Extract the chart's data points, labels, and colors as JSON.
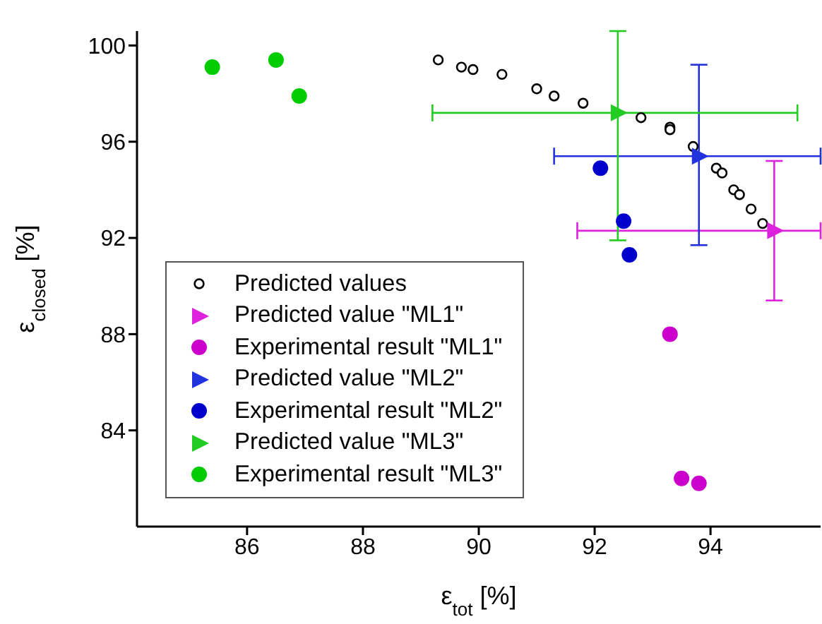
{
  "chart_data": {
    "type": "scatter",
    "xlabel": "ε$_{tot}$ [%]",
    "ylabel": "ε$_{closed}$ [%]",
    "xlim": [
      84.1,
      95.9
    ],
    "ylim": [
      80,
      100.6
    ],
    "xticks": [
      86,
      88,
      90,
      92,
      94
    ],
    "yticks": [
      84,
      88,
      92,
      96,
      100
    ],
    "grid": false,
    "legend": "bottom left",
    "series": [
      {
        "name": "Predicted values",
        "color": "#000000",
        "marker": "circle",
        "x": [
          89.3,
          89.7,
          89.9,
          90.4,
          91.0,
          91.3,
          91.8,
          92.8,
          93.3,
          93.3,
          93.7,
          94.1,
          94.2,
          94.4,
          94.5,
          94.7,
          94.9
        ],
        "values": [
          99.4,
          99.1,
          99.0,
          98.8,
          98.2,
          97.9,
          97.6,
          97.0,
          96.6,
          96.5,
          95.8,
          94.9,
          94.7,
          94.0,
          93.8,
          93.2,
          92.6
        ]
      },
      {
        "name": "Predicted value \"ML1\"",
        "color": "#dd22dd",
        "marker": "triangle",
        "x": [
          95.1
        ],
        "values": [
          92.3
        ],
        "errors": [
          [
            89.4,
            95.2
          ]
        ],
        "xerrors": [
          [
            91.7,
            95.9
          ]
        ]
      },
      {
        "name": "Experimental result \"ML1\"",
        "color": "#cc00cc",
        "marker": "circle",
        "x": [
          93.3,
          93.5,
          93.8
        ],
        "values": [
          88.0,
          82.0,
          81.8
        ]
      },
      {
        "name": "Predicted value \"ML2\"",
        "color": "#2233dd",
        "marker": "triangle",
        "x": [
          93.8
        ],
        "values": [
          95.4
        ],
        "errors": [
          [
            91.7,
            99.2
          ]
        ],
        "xerrors": [
          [
            91.3,
            95.9
          ]
        ]
      },
      {
        "name": "Experimental result \"ML2\"",
        "color": "#0000cc",
        "marker": "circle",
        "x": [
          92.1,
          92.5,
          92.6
        ],
        "values": [
          94.9,
          92.7,
          91.3
        ]
      },
      {
        "name": "Predicted value \"ML3\"",
        "color": "#22cc22",
        "marker": "triangle",
        "x": [
          92.4
        ],
        "values": [
          97.2
        ],
        "errors": [
          [
            91.9,
            100.6
          ]
        ],
        "xerrors": [
          [
            89.2,
            95.5
          ]
        ]
      },
      {
        "name": "Experimental result \"ML3\"",
        "color": "#00cc00",
        "marker": "circle",
        "x": [
          85.4,
          86.5,
          86.9
        ],
        "values": [
          99.1,
          99.4,
          97.9
        ]
      }
    ]
  }
}
